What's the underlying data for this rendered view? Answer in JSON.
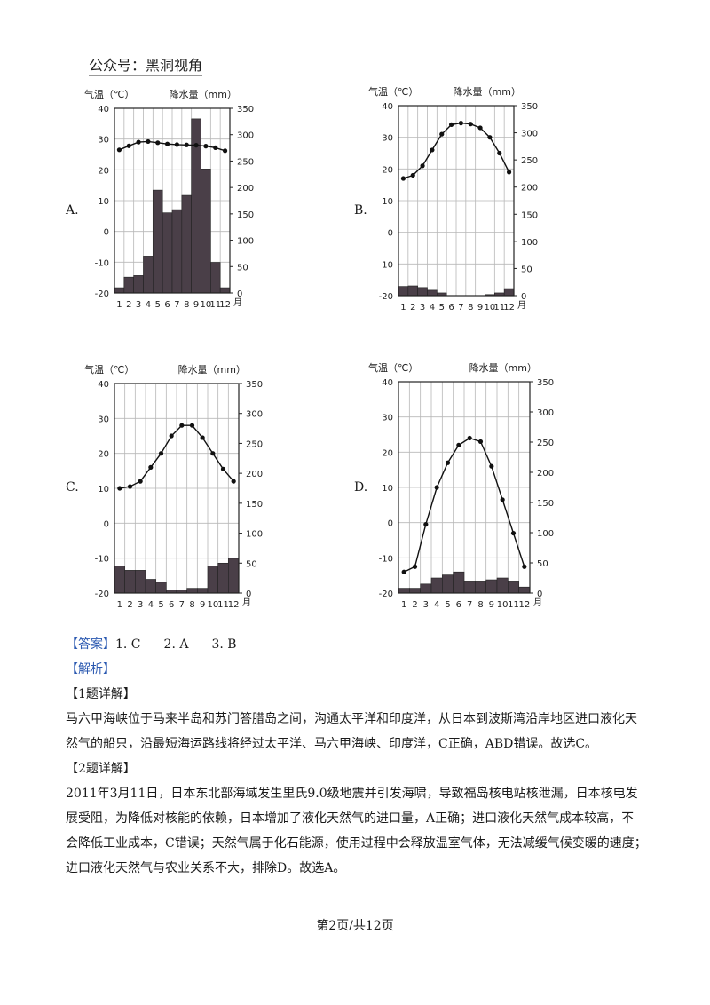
{
  "watermark": "公众号：黑洞视角",
  "chart_labels": {
    "temp_title": "气温（℃）",
    "precip_title": "降水量（mm）",
    "month_suffix": "月",
    "month_ticks": [
      "1",
      "2",
      "3",
      "4",
      "5",
      "6",
      "7",
      "8",
      "9",
      "10",
      "11",
      "12"
    ],
    "temp_ticks": [
      "40",
      "30",
      "20",
      "10",
      "0",
      "-10",
      "-20"
    ],
    "precip_ticks": [
      "350",
      "300",
      "250",
      "200",
      "150",
      "100",
      "50",
      "0"
    ]
  },
  "chart_data": [
    {
      "type": "bar+line",
      "label": "A.",
      "months": [
        1,
        2,
        3,
        4,
        5,
        6,
        7,
        8,
        9,
        10,
        11,
        12
      ],
      "temperature": [
        26.5,
        27.8,
        29.0,
        29.2,
        28.8,
        28.4,
        28.2,
        28.1,
        28.0,
        27.7,
        27.2,
        26.2
      ],
      "precipitation": [
        10,
        30,
        33,
        70,
        195,
        152,
        158,
        185,
        330,
        235,
        58,
        10
      ],
      "temp_range": [
        -20,
        40
      ],
      "precip_range": [
        0,
        350
      ]
    },
    {
      "type": "bar+line",
      "label": "B.",
      "months": [
        1,
        2,
        3,
        4,
        5,
        6,
        7,
        8,
        9,
        10,
        11,
        12
      ],
      "temperature": [
        17.0,
        18.0,
        21.0,
        26.0,
        31.0,
        34.0,
        34.5,
        34.2,
        33.0,
        30.0,
        25.0,
        19.0
      ],
      "precipitation": [
        17,
        18,
        15,
        10,
        5,
        0,
        0,
        0,
        0,
        2,
        5,
        13
      ],
      "temp_range": [
        -20,
        40
      ],
      "precip_range": [
        0,
        350
      ]
    },
    {
      "type": "bar+line",
      "label": "C.",
      "months": [
        1,
        2,
        3,
        4,
        5,
        6,
        7,
        8,
        9,
        10,
        11,
        12
      ],
      "temperature": [
        10.0,
        10.5,
        12.0,
        16.0,
        20.0,
        25.0,
        28.0,
        28.0,
        24.5,
        20.0,
        15.5,
        12.0
      ],
      "precipitation": [
        45,
        38,
        38,
        23,
        18,
        5,
        5,
        8,
        8,
        45,
        50,
        58
      ],
      "temp_range": [
        -20,
        40
      ],
      "precip_range": [
        0,
        350
      ]
    },
    {
      "type": "bar+line",
      "label": "D.",
      "months": [
        1,
        2,
        3,
        4,
        5,
        6,
        7,
        8,
        9,
        10,
        11,
        12
      ],
      "temperature": [
        -14.0,
        -12.5,
        -0.5,
        10.0,
        17.0,
        22.0,
        24.0,
        23.0,
        16.0,
        6.5,
        -3.0,
        -12.5
      ],
      "precipitation": [
        8,
        8,
        15,
        25,
        30,
        35,
        20,
        20,
        22,
        25,
        20,
        10
      ],
      "temp_range": [
        -20,
        40
      ],
      "precip_range": [
        0,
        350
      ]
    }
  ],
  "answer": {
    "label": "【答案】",
    "items": [
      "1. C",
      "2. A",
      "3. B"
    ]
  },
  "analysis": {
    "label": "【解析】",
    "q1_heading": "【1题详解】",
    "q1_lines": [
      "马六甲海峡位于马来半岛和苏门答腊岛之间，沟通太平洋和印度洋，从日本到波斯湾沿岸地区进口液化天",
      "然气的船只，沿最短海运路线将经过太平洋、马六甲海峡、印度洋，C正确，ABD错误。故选C。"
    ],
    "q2_heading": "【2题详解】",
    "q2_lines": [
      "2011年3月11日，日本东北部海域发生里氏9.0级地震并引发海啸，导致福岛核电站核泄漏，日本核电发",
      "展受阻，为降低对核能的依赖，日本增加了液化天然气的进口量，A正确；进口液化天然气成本较高，不",
      "会降低工业成本，C错误；天然气属于化石能源，使用过程中会释放温室气体，无法减缓气候变暖的速度；",
      "进口液化天然气与农业关系不大，排除D。故选A。"
    ]
  },
  "footer": "第2页/共12页"
}
